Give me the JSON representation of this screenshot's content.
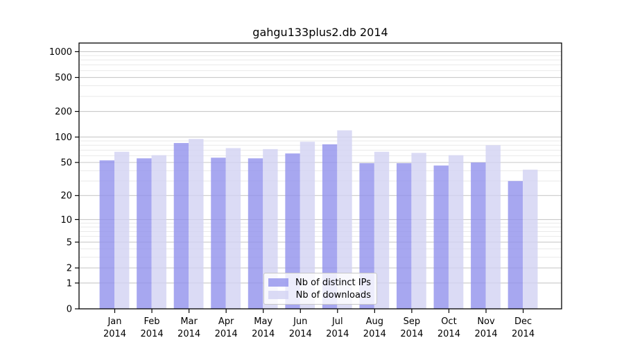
{
  "chart_data": {
    "type": "bar",
    "title": "gahgu133plus2.db 2014",
    "x_year": "2014",
    "categories": [
      "Jan",
      "Feb",
      "Mar",
      "Apr",
      "May",
      "Jun",
      "Jul",
      "Aug",
      "Sep",
      "Oct",
      "Nov",
      "Dec"
    ],
    "series": [
      {
        "name": "Nb of distinct IPs",
        "key": "distinct-ips",
        "color": "#9191ec",
        "values": [
          53,
          56,
          85,
          57,
          56,
          64,
          82,
          49,
          49,
          46,
          50,
          30
        ]
      },
      {
        "name": "Nb of downloads",
        "key": "downloads",
        "color": "#d2d2f2",
        "values": [
          67,
          61,
          95,
          74,
          72,
          88,
          120,
          67,
          65,
          61,
          80,
          41
        ]
      }
    ],
    "y_ticks": [
      0,
      1,
      2,
      5,
      10,
      20,
      50,
      100,
      200,
      500,
      1000
    ],
    "y_minor_gridlines": [
      3,
      4,
      6,
      7,
      8,
      9,
      30,
      40,
      60,
      70,
      80,
      90,
      300,
      400,
      600,
      700,
      800,
      900
    ],
    "y_scale": "log10(1+value)",
    "ylim": [
      0,
      1250
    ],
    "grid": true,
    "legend_position": "lower center"
  },
  "colors": {
    "major_grid": "#c9c9c9",
    "minor_grid": "#e9e9e9",
    "axis": "#000000",
    "tick_label": "#000000",
    "bar_opacity": 0.8,
    "legend_border": "#c7c7c7",
    "legend_bg": "rgba(255,255,255,0.8)"
  }
}
